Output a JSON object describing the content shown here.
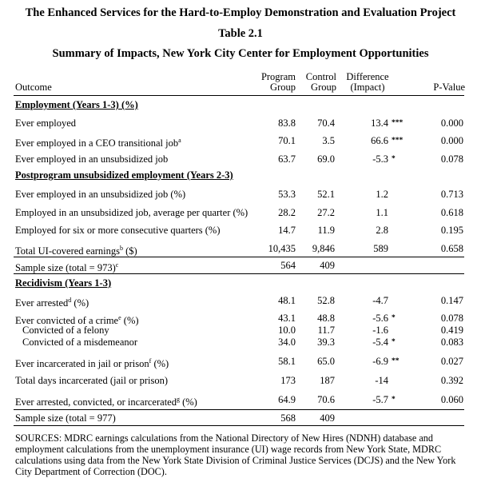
{
  "titles": {
    "project": "The Enhanced Services for the Hard-to-Employ Demonstration and Evaluation Project",
    "table": "Table 2.1",
    "summary": "Summary of Impacts, New York City Center for Employment Opportunities"
  },
  "headers": {
    "outcome": "Outcome",
    "program_line1": "Program",
    "program_line2": "Group",
    "control_line1": "Control",
    "control_line2": "Group",
    "diff_line1": "Difference",
    "diff_line2": "(Impact)",
    "pvalue": "P-Value"
  },
  "sections": {
    "employment": "Employment (Years 1-3) (%)",
    "postprogram": "Postprogram unsubsidized employment (Years 2-3)",
    "recidivism": "Recidivism (Years 1-3)"
  },
  "rows": [
    {
      "label": "Ever employed",
      "sup": "",
      "unit": "",
      "program": "83.8",
      "control": "70.4",
      "diff": "13.4",
      "sig": "***",
      "pvalue": "0.000"
    },
    {
      "label": "Ever employed in a CEO transitional job",
      "sup": "a",
      "unit": "",
      "program": "70.1",
      "control": "3.5",
      "diff": "66.6",
      "sig": "***",
      "pvalue": "0.000"
    },
    {
      "label": "Ever employed in an unsubsidized job",
      "sup": "",
      "unit": "",
      "program": "63.7",
      "control": "69.0",
      "diff": "-5.3",
      "sig": "*",
      "pvalue": "0.078"
    },
    {
      "label": "Ever employed in an unsubsidized job (%)",
      "sup": "",
      "unit": "",
      "program": "53.3",
      "control": "52.1",
      "diff": "1.2",
      "sig": "",
      "pvalue": "0.713"
    },
    {
      "label": "Employed in an unsubsidized job, average per quarter (%)",
      "sup": "",
      "unit": "",
      "program": "28.2",
      "control": "27.2",
      "diff": "1.1",
      "sig": "",
      "pvalue": "0.618"
    },
    {
      "label": "Employed for six or more consecutive quarters (%)",
      "sup": "",
      "unit": "",
      "program": "14.7",
      "control": "11.9",
      "diff": "2.8",
      "sig": "",
      "pvalue": "0.195"
    },
    {
      "label": "Total UI-covered earnings",
      "sup": "b",
      "unit": " ($)",
      "program": "10,435",
      "control": "9,846",
      "diff": "589",
      "sig": "",
      "pvalue": "0.658"
    },
    {
      "label": "Sample size (total = 973)",
      "sup": "c",
      "unit": "",
      "program": "564",
      "control": "409",
      "diff": "",
      "sig": "",
      "pvalue": ""
    },
    {
      "label": "Ever arrested",
      "sup": "d",
      "unit": " (%)",
      "program": "48.1",
      "control": "52.8",
      "diff": "-4.7",
      "sig": "",
      "pvalue": "0.147"
    },
    {
      "label": "Ever convicted of a crime",
      "sup": "e",
      "unit": " (%)",
      "program": "43.1",
      "control": "48.8",
      "diff": "-5.6",
      "sig": "*",
      "pvalue": "0.078"
    },
    {
      "label": "Convicted of a felony",
      "sup": "",
      "unit": "",
      "program": "10.0",
      "control": "11.7",
      "diff": "-1.6",
      "sig": "",
      "pvalue": "0.419"
    },
    {
      "label": "Convicted of a misdemeanor",
      "sup": "",
      "unit": "",
      "program": "34.0",
      "control": "39.3",
      "diff": "-5.4",
      "sig": "*",
      "pvalue": "0.083"
    },
    {
      "label": "Ever incarcerated in jail or prison",
      "sup": "f",
      "unit": " (%)",
      "program": "58.1",
      "control": "65.0",
      "diff": "-6.9",
      "sig": "**",
      "pvalue": "0.027"
    },
    {
      "label": "Total days incarcerated (jail or prison)",
      "sup": "",
      "unit": "",
      "program": "173",
      "control": "187",
      "diff": "-14",
      "sig": "",
      "pvalue": "0.392"
    },
    {
      "label": "Ever arrested, convicted, or incarcerated",
      "sup": "g",
      "unit": " (%)",
      "program": "64.9",
      "control": "70.6",
      "diff": "-5.7",
      "sig": "*",
      "pvalue": "0.060"
    },
    {
      "label": "Sample size (total = 977)",
      "sup": "",
      "unit": "",
      "program": "568",
      "control": "409",
      "diff": "",
      "sig": "",
      "pvalue": ""
    }
  ],
  "sources": "SOURCES: MDRC earnings calculations from the National Directory of New Hires (NDNH) database and employment calculations from the unemployment insurance (UI) wage records from New York State, MDRC calculations using data from the New York State Division of Criminal Justice Services (DCJS) and the New York City Department of Correction (DOC)."
}
